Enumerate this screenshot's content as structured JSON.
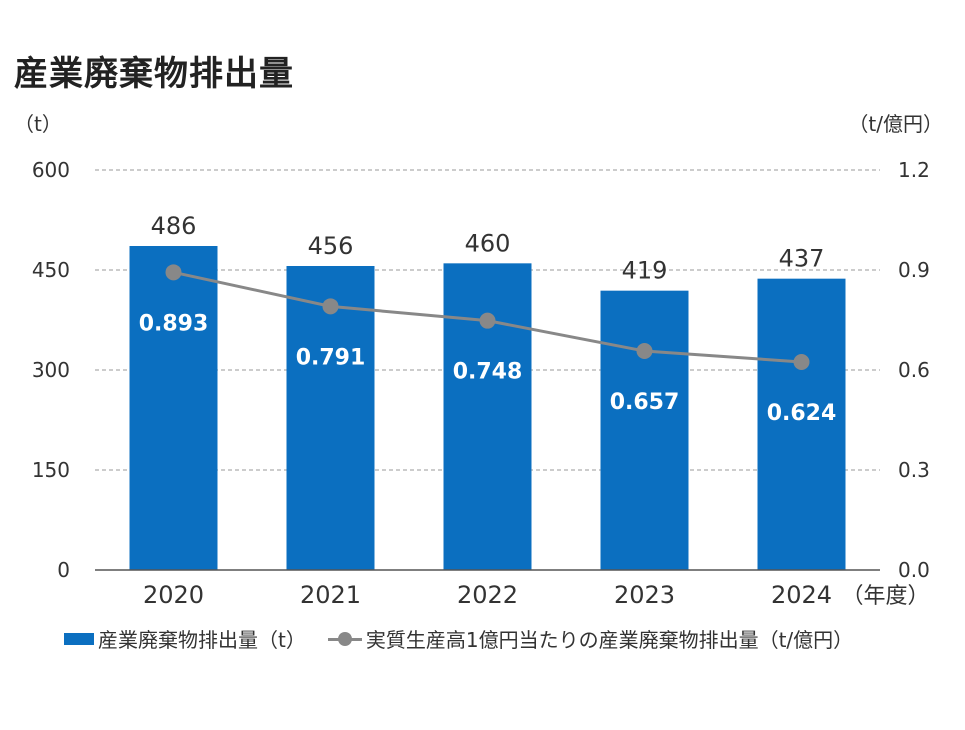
{
  "title": "産業廃棄物排出量",
  "unit_left": "（t）",
  "unit_right": "（t/億円）",
  "chart_data": {
    "type": "bar",
    "categories": [
      "2020",
      "2021",
      "2022",
      "2023",
      "2024"
    ],
    "x_suffix": "（年度）",
    "series": [
      {
        "name": "産業廃棄物排出量（t）",
        "type": "bar",
        "axis": "left",
        "values": [
          486,
          456,
          460,
          419,
          437
        ],
        "color": "#0b6fc0"
      },
      {
        "name": "実質生産高1億円当たりの産業廃棄物排出量（t/億円）",
        "type": "line",
        "axis": "right",
        "values": [
          0.893,
          0.791,
          0.748,
          0.657,
          0.624
        ],
        "color": "#888888"
      }
    ],
    "y_left": {
      "ylim": [
        0,
        600
      ],
      "ticks": [
        "0",
        "150",
        "300",
        "450",
        "600"
      ]
    },
    "y_right": {
      "ylim": [
        0,
        1.2
      ],
      "ticks": [
        "0.0",
        "0.3",
        "0.6",
        "0.9",
        "1.2"
      ]
    },
    "grid": true,
    "legend": "bottom"
  }
}
